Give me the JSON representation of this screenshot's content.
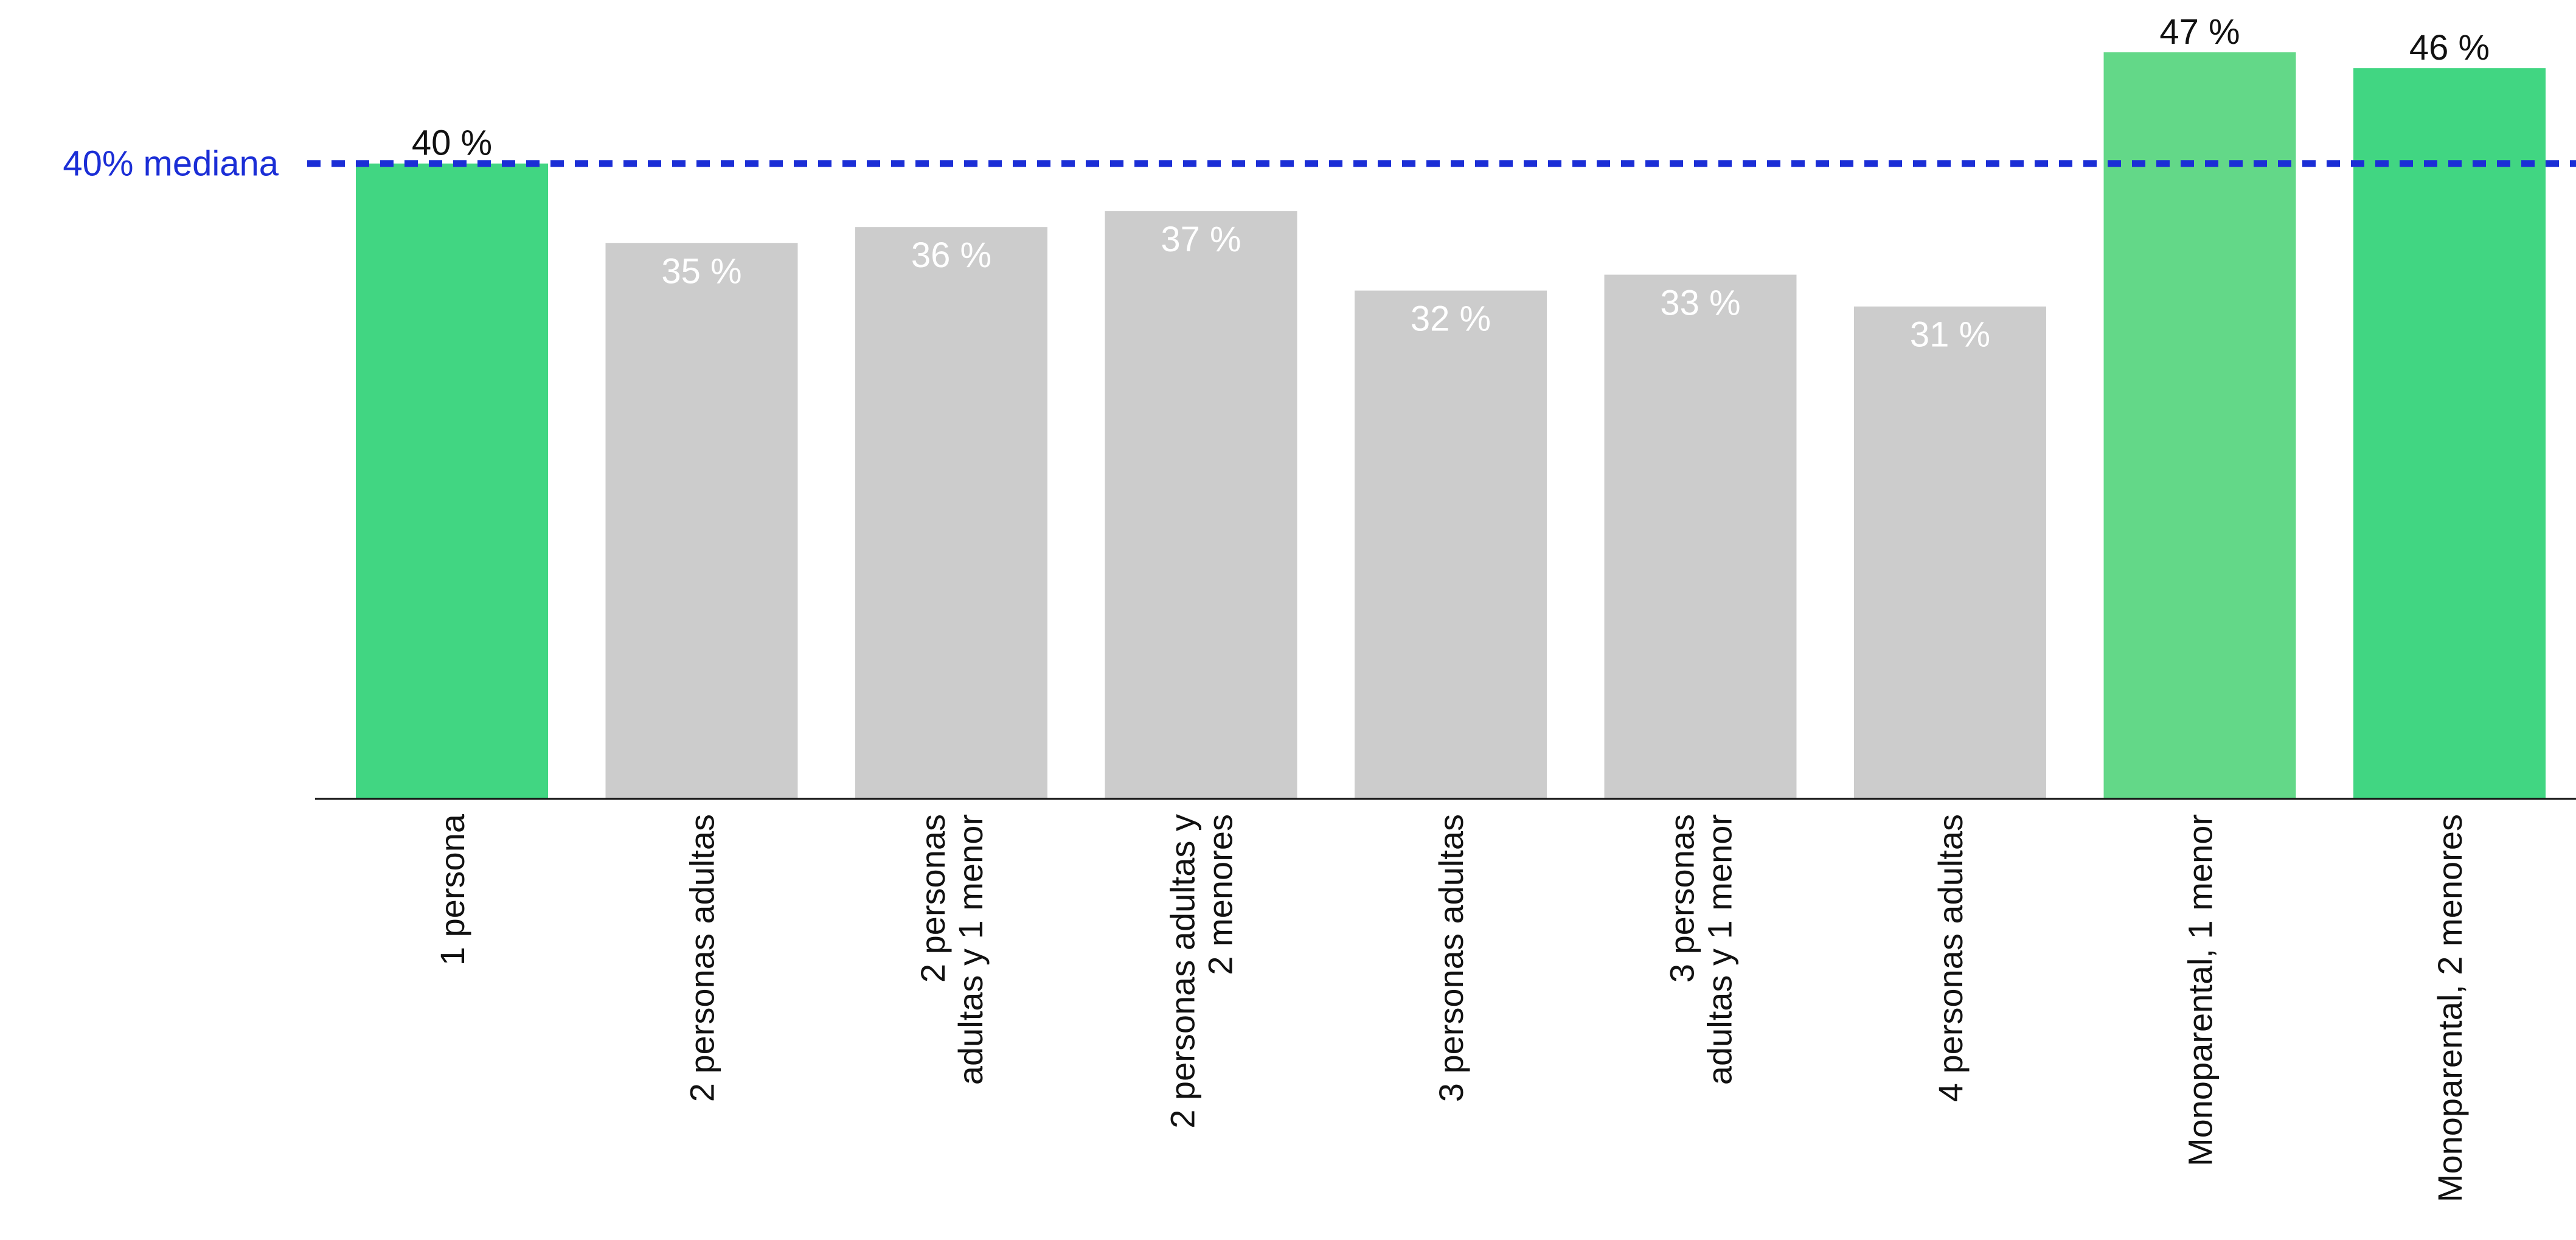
{
  "chart_data": {
    "type": "bar",
    "categories": [
      [
        "1 persona"
      ],
      [
        "2 personas  adultas"
      ],
      [
        "2 personas",
        "adultas y  1 menor"
      ],
      [
        "2 personas  adultas y",
        "2 menores"
      ],
      [
        "3 personas adultas"
      ],
      [
        "3 personas",
        "adultas y 1 menor"
      ],
      [
        "4 personas adultas"
      ],
      [
        "Monoparental, 1 menor"
      ],
      [
        "Monoparental, 2 menores"
      ]
    ],
    "values": [
      40,
      35,
      36,
      37,
      32,
      33,
      31,
      47,
      46
    ],
    "value_labels": [
      "40 %",
      "35 %",
      "36 %",
      "37 %",
      "32 %",
      "33 %",
      "31 %",
      "47 %",
      "46 %"
    ],
    "label_position": [
      "above",
      "inside",
      "inside",
      "inside",
      "inside",
      "inside",
      "inside",
      "above",
      "above"
    ],
    "bar_colors": [
      "#41d682",
      "#cccccc",
      "#cccccc",
      "#cccccc",
      "#cccccc",
      "#cccccc",
      "#cccccc",
      "#63d888",
      "#41d682"
    ],
    "label_colors": {
      "above": "#111111",
      "inside": "#ffffff"
    },
    "ylim": [
      0,
      47
    ],
    "reference_line": {
      "value": 40,
      "label": "40% mediana",
      "color": "#1b2ed6",
      "style": "dashed"
    },
    "title": "",
    "xlabel": "",
    "ylabel": ""
  }
}
